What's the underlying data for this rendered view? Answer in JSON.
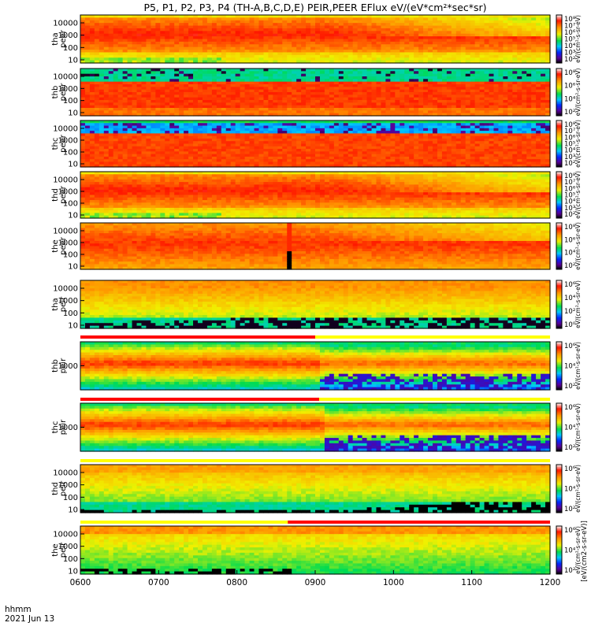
{
  "figure": {
    "title": "P5, P1, P2, P3, P4 (TH-A,B,C,D,E) PEIR,PEER EFlux eV/(eV*cm²*sec*sr)",
    "colorbar_units_label": "[eV/(cm2-s-sr-eV)]",
    "time_format_label": "hhmm",
    "date_label": "2021 Jun 13"
  },
  "chart_data": {
    "type": "heatmap",
    "description_x": "UT time (hhmm)",
    "x_ticks": [
      "0600",
      "0700",
      "0800",
      "0900",
      "1000",
      "1100",
      "1200"
    ],
    "x_range": [
      600,
      1200
    ],
    "colormap": "rainbow (black-purple-blue-cyan-green-yellow-orange-red-white)",
    "panels": [
      {
        "id": "tha-peer",
        "ylabel": [
          "tha",
          "peer"
        ],
        "species": "electron",
        "yscale": "log",
        "y_ticks": [
          "10",
          "100",
          "1000",
          "10000"
        ],
        "cb_ticks": [
          "10²",
          "10³",
          "10⁴",
          "10⁵",
          "10⁶",
          "10⁷",
          "10⁸"
        ],
        "gap_bar": null,
        "cb_unit_text": "eV/(cm²-s-sr-eV)"
      },
      {
        "id": "thb-peer",
        "ylabel": [
          "thb",
          "peer"
        ],
        "species": "electron",
        "yscale": "log",
        "y_ticks": [
          "10",
          "100",
          "1000",
          "10000"
        ],
        "cb_ticks": [
          "10²",
          "10⁴",
          "10⁶",
          "10⁸"
        ],
        "gap_bar": null,
        "cb_unit_text": "eV/(cm²-s-sr-eV)"
      },
      {
        "id": "thc-peer",
        "ylabel": [
          "thc",
          "peer"
        ],
        "species": "electron",
        "yscale": "log",
        "y_ticks": [
          "10",
          "100",
          "1000",
          "10000"
        ],
        "cb_ticks": [
          "10²",
          "10³",
          "10⁴",
          "10⁵",
          "10⁶",
          "10⁷",
          "10⁸"
        ],
        "gap_bar": null,
        "cb_unit_text": "eV/(cm²-s-sr-eV)"
      },
      {
        "id": "thd-peer",
        "ylabel": [
          "thd",
          "peer"
        ],
        "species": "electron",
        "yscale": "log",
        "y_ticks": [
          "10",
          "100",
          "1000",
          "10000"
        ],
        "cb_ticks": [
          "10²",
          "10³",
          "10⁴",
          "10⁵",
          "10⁶",
          "10⁷",
          "10⁸"
        ],
        "gap_bar": null,
        "cb_unit_text": "eV/(cm²-s-sr-eV)"
      },
      {
        "id": "the-peer",
        "ylabel": [
          "the",
          "peer"
        ],
        "species": "electron",
        "yscale": "log",
        "y_ticks": [
          "10",
          "100",
          "1000",
          "10000"
        ],
        "cb_ticks": [
          "10²",
          "10⁴",
          "10⁶",
          "10⁸"
        ],
        "gap_bar": null,
        "cb_unit_text": "eV/(cm²-s-sr-eV)"
      },
      {
        "id": "tha-peir",
        "ylabel": [
          "tha",
          "peir"
        ],
        "species": "ion",
        "yscale": "log",
        "y_ticks": [
          "10",
          "100",
          "1000",
          "10000"
        ],
        "cb_ticks": [
          "10⁰",
          "10²",
          "10⁴",
          "10⁶"
        ],
        "gap_bar": null,
        "cb_unit_text": "eV/(cm²-s-sr-eV)"
      },
      {
        "id": "thb-peir",
        "ylabel": [
          "thb",
          "peir"
        ],
        "species": "ion",
        "yscale": "log",
        "y_ticks": [
          "1000"
        ],
        "cb_ticks": [
          "10²",
          "10⁴",
          "10⁶"
        ],
        "gap_bar": {
          "red_until": 900
        },
        "cb_unit_text": "eV/(cm²-s-sr-eV)"
      },
      {
        "id": "thc-peir",
        "ylabel": [
          "thc",
          "peir"
        ],
        "species": "ion",
        "yscale": "log",
        "y_ticks": [
          "1000"
        ],
        "cb_ticks": [
          "10²",
          "10⁴",
          "10⁶"
        ],
        "gap_bar": {
          "red_until": 905
        },
        "cb_unit_text": "eV/(cm²-s-sr-eV)"
      },
      {
        "id": "thd-peir",
        "ylabel": [
          "thd",
          "peir"
        ],
        "species": "ion",
        "yscale": "log",
        "y_ticks": [
          "10",
          "100",
          "1000",
          "10000"
        ],
        "cb_ticks": [
          "10²",
          "10⁴",
          "10⁶"
        ],
        "gap_bar": {
          "red_until": 600
        },
        "cb_unit_text": "eV/(cm²-s-sr-eV)"
      },
      {
        "id": "the-peir",
        "ylabel": [
          "the",
          "peir"
        ],
        "species": "ion",
        "yscale": "log",
        "y_ticks": [
          "10",
          "100",
          "1000",
          "10000"
        ],
        "cb_ticks": [
          "10²",
          "10⁴",
          "10⁶"
        ],
        "gap_bar": {
          "red_from": 865
        },
        "cb_unit_text": "eV/(cm²-s-sr-eV)"
      }
    ]
  }
}
